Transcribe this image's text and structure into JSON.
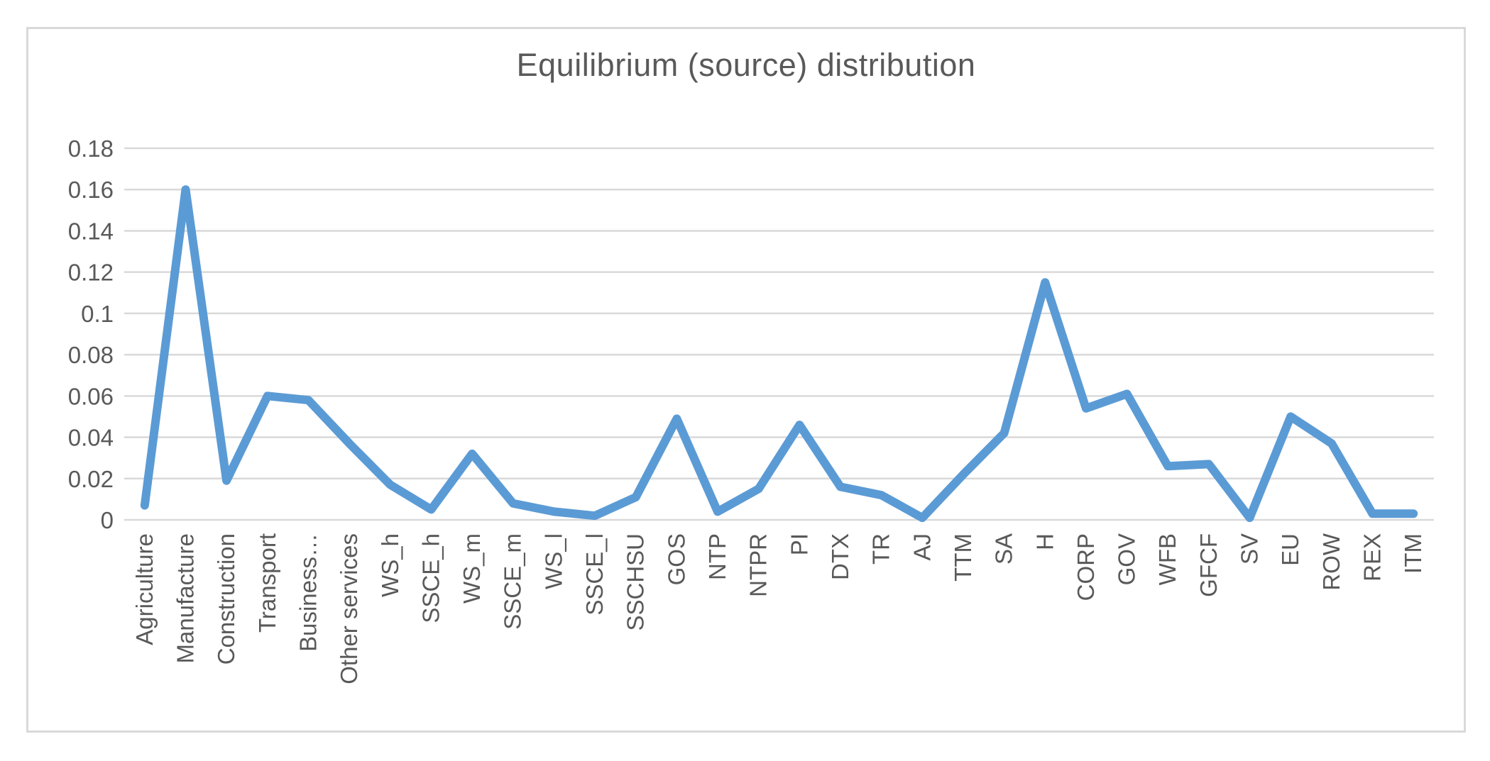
{
  "colors": {
    "line": "#5B9BD5",
    "grid": "#D9D9D9",
    "frame": "#D9D9D9",
    "text": "#595959",
    "background": "#FFFFFF"
  },
  "chart_data": {
    "type": "line",
    "title": "Equilibrium (source) distribution",
    "categories": [
      "Agriculture",
      "Manufacture",
      "Construction",
      "Transport",
      "Business…",
      "Other services",
      "WS_h",
      "SSCE_h",
      "WS_m",
      "SSCE_m",
      "WS_l",
      "SSCE_l",
      "SSCHSU",
      "GOS",
      "NTP",
      "NTPR",
      "PI",
      "DTX",
      "TR",
      "AJ",
      "TTM",
      "SA",
      "H",
      "CORP",
      "GOV",
      "WFB",
      "GFCF",
      "SV",
      "EU",
      "ROW",
      "REX",
      "ITM"
    ],
    "values": [
      0.007,
      0.16,
      0.019,
      0.06,
      0.058,
      0.037,
      0.017,
      0.005,
      0.032,
      0.008,
      0.004,
      0.002,
      0.011,
      0.049,
      0.004,
      0.015,
      0.046,
      0.016,
      0.012,
      0.001,
      0.022,
      0.042,
      0.115,
      0.054,
      0.061,
      0.026,
      0.027,
      0.001,
      0.05,
      0.037,
      0.003,
      0.003
    ],
    "xlabel": "",
    "ylabel": "",
    "ylim": [
      0,
      0.18
    ],
    "ytick_step": 0.02,
    "ytick_labels": [
      "0.18",
      "0.16",
      "0.14",
      "0.12",
      "0.1",
      "0.08",
      "0.06",
      "0.04",
      "0.02",
      "0"
    ],
    "grid": "horizontal",
    "legend": "none",
    "series_name": "Equilibrium (source) distribution"
  }
}
